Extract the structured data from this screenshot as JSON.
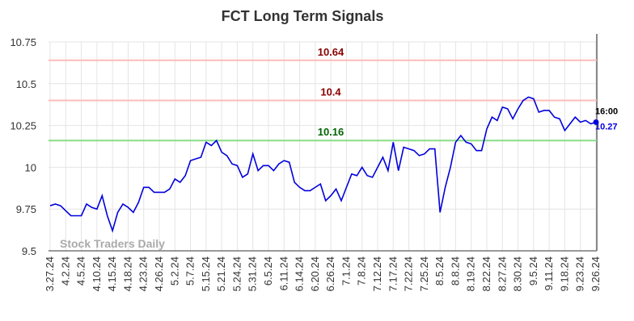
{
  "chart_data": {
    "type": "line",
    "title": "FCT Long Term Signals",
    "categories": [
      "3.27.24",
      null,
      null,
      "4.2.24",
      null,
      null,
      "4.5.24",
      null,
      null,
      "4.10.24",
      null,
      null,
      "4.15.24",
      null,
      null,
      "4.18.24",
      null,
      null,
      "4.23.24",
      null,
      null,
      "4.26.24",
      null,
      null,
      "5.2.24",
      null,
      null,
      "5.7.24",
      null,
      null,
      "5.15.24",
      null,
      null,
      "5.21.24",
      null,
      null,
      "5.24.24",
      null,
      null,
      "5.31.24",
      null,
      null,
      "6.5.24",
      null,
      null,
      "6.11.24",
      null,
      null,
      "6.14.24",
      null,
      null,
      "6.20.24",
      null,
      null,
      "6.26.24",
      null,
      null,
      "7.1.24",
      null,
      null,
      "7.8.24",
      null,
      null,
      "7.12.24",
      null,
      null,
      "7.17.24",
      null,
      null,
      "7.22.24",
      null,
      null,
      "7.25.24",
      null,
      null,
      "8.5.24",
      null,
      null,
      "8.8.24",
      null,
      null,
      "8.19.24",
      null,
      null,
      "8.22.24",
      null,
      null,
      "8.27.24",
      null,
      null,
      "8.30.24",
      null,
      null,
      "9.5.24",
      null,
      null,
      "9.11.24",
      null,
      null,
      "9.18.24",
      null,
      null,
      "9.23.24",
      null,
      null,
      "9.26.24"
    ],
    "series": [
      {
        "color": "#0000dd",
        "values": [
          9.77,
          9.78,
          9.77,
          9.74,
          9.71,
          9.71,
          9.71,
          9.78,
          9.76,
          9.75,
          9.83,
          9.71,
          9.62,
          9.73,
          9.78,
          9.76,
          9.73,
          9.79,
          9.88,
          9.88,
          9.85,
          9.85,
          9.85,
          9.87,
          9.93,
          9.91,
          9.95,
          10.04,
          10.05,
          10.06,
          10.15,
          10.13,
          10.16,
          10.09,
          10.07,
          10.02,
          10.01,
          9.94,
          9.96,
          10.08,
          9.98,
          10.01,
          10.01,
          9.98,
          10.02,
          10.04,
          10.03,
          9.91,
          9.88,
          9.86,
          9.86,
          9.88,
          9.9,
          9.8,
          9.83,
          9.87,
          9.8,
          9.88,
          9.96,
          9.95,
          10.0,
          9.95,
          9.94,
          10.0,
          10.06,
          9.98,
          10.15,
          9.98,
          10.12,
          10.11,
          10.1,
          10.07,
          10.08,
          10.11,
          10.11,
          9.73,
          9.88,
          10.0,
          10.15,
          10.19,
          10.15,
          10.14,
          10.1,
          10.1,
          10.23,
          10.3,
          10.28,
          10.36,
          10.35,
          10.29,
          10.35,
          10.4,
          10.42,
          10.41,
          10.33,
          10.34,
          10.34,
          10.3,
          10.29,
          10.22,
          10.26,
          10.3,
          10.27,
          10.28,
          10.26,
          10.27
        ]
      }
    ],
    "ylim": [
      9.5,
      10.75
    ],
    "yticks": [
      9.5,
      9.75,
      10,
      10.25,
      10.5,
      10.75
    ],
    "grid": true,
    "signal_lines": [
      {
        "value": 10.64,
        "color": "#ffbbbb",
        "label_color": "#8b0000"
      },
      {
        "value": 10.4,
        "color": "#ffbbbb",
        "label_color": "#8b0000"
      },
      {
        "value": 10.16,
        "color": "#88dd88",
        "label_color": "#006400"
      }
    ],
    "last_time": "16:00",
    "watermark": "Stock Traders Daily"
  }
}
